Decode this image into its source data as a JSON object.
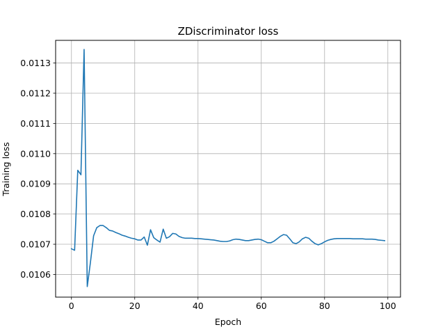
{
  "chart_data": {
    "type": "line",
    "title": "ZDiscriminator loss",
    "xlabel": "Epoch",
    "ylabel": "Training loss",
    "xlim": [
      -5,
      104
    ],
    "ylim": [
      0.010525,
      0.011375
    ],
    "xticks": [
      0,
      20,
      40,
      60,
      80,
      100
    ],
    "xtick_labels": [
      "0",
      "20",
      "40",
      "60",
      "80",
      "100"
    ],
    "yticks": [
      0.0106,
      0.0107,
      0.0108,
      0.0109,
      0.011,
      0.0111,
      0.0112,
      0.0113
    ],
    "ytick_labels": [
      "0.0106",
      "0.0107",
      "0.0108",
      "0.0109",
      "0.0110",
      "0.0111",
      "0.0112",
      "0.0113"
    ],
    "grid": true,
    "legend": "none",
    "series": [
      {
        "color": "#1f77b4",
        "x": [
          0,
          1,
          2,
          3,
          4,
          5,
          6,
          7,
          8,
          9,
          10,
          11,
          12,
          13,
          14,
          15,
          16,
          17,
          18,
          19,
          20,
          21,
          22,
          23,
          24,
          25,
          26,
          27,
          28,
          29,
          30,
          31,
          32,
          33,
          34,
          35,
          36,
          37,
          38,
          39,
          40,
          41,
          42,
          43,
          44,
          45,
          46,
          47,
          48,
          49,
          50,
          51,
          52,
          53,
          54,
          55,
          56,
          57,
          58,
          59,
          60,
          61,
          62,
          63,
          64,
          65,
          66,
          67,
          68,
          69,
          70,
          71,
          72,
          73,
          74,
          75,
          76,
          77,
          78,
          79,
          80,
          81,
          82,
          83,
          84,
          85,
          86,
          87,
          88,
          89,
          90,
          91,
          92,
          93,
          94,
          95,
          96,
          97,
          98,
          99
        ],
        "values": [
          0.010685,
          0.01068,
          0.010945,
          0.01093,
          0.011345,
          0.01056,
          0.01064,
          0.010728,
          0.010755,
          0.010762,
          0.010762,
          0.010755,
          0.010746,
          0.010744,
          0.010739,
          0.010735,
          0.01073,
          0.010727,
          0.010723,
          0.01072,
          0.010718,
          0.010714,
          0.010714,
          0.010724,
          0.010697,
          0.010748,
          0.010722,
          0.010714,
          0.010707,
          0.01075,
          0.01072,
          0.010725,
          0.010736,
          0.010734,
          0.010726,
          0.010722,
          0.01072,
          0.01072,
          0.01072,
          0.010719,
          0.010719,
          0.010718,
          0.010717,
          0.010716,
          0.010715,
          0.010714,
          0.010712,
          0.01071,
          0.010709,
          0.010709,
          0.010711,
          0.010715,
          0.010717,
          0.010716,
          0.010714,
          0.010712,
          0.010712,
          0.010714,
          0.010716,
          0.010717,
          0.010715,
          0.01071,
          0.010705,
          0.010705,
          0.01071,
          0.010718,
          0.010726,
          0.010732,
          0.01073,
          0.010718,
          0.010705,
          0.010702,
          0.010708,
          0.010718,
          0.010723,
          0.01072,
          0.01071,
          0.010702,
          0.010698,
          0.010702,
          0.010708,
          0.010713,
          0.010716,
          0.010718,
          0.010719,
          0.010719,
          0.010719,
          0.010719,
          0.010719,
          0.010718,
          0.010718,
          0.010718,
          0.010718,
          0.010717,
          0.010717,
          0.010717,
          0.010716,
          0.010714,
          0.010713,
          0.010712
        ]
      }
    ]
  }
}
